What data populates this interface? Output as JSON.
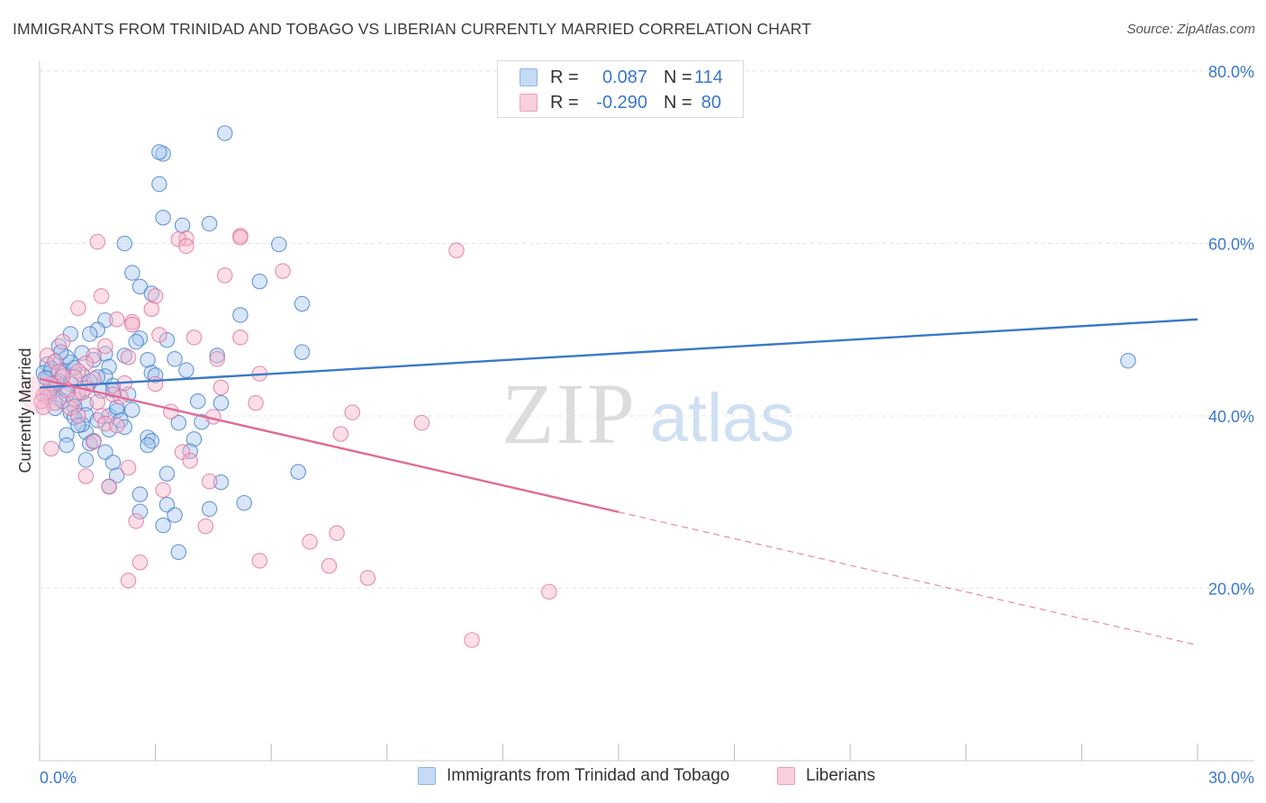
{
  "header": {
    "title": "IMMIGRANTS FROM TRINIDAD AND TOBAGO VS LIBERIAN CURRENTLY MARRIED CORRELATION CHART",
    "source": "Source: ZipAtlas.com"
  },
  "watermark": {
    "zip": "ZIP",
    "atlas": "atlas"
  },
  "legend": {
    "rows": [
      {
        "r_label": "R =",
        "r_value": "0.087",
        "n_label": "N =",
        "n_value": "114",
        "color": "#8fb6e8",
        "fill": "#c5daf4"
      },
      {
        "r_label": "R =",
        "r_value": "-0.290",
        "n_label": "N =",
        "n_value": "80",
        "color": "#eda1bd",
        "fill": "#f8cfdd"
      }
    ]
  },
  "bottom_legend": {
    "series1": "Immigrants from Trinidad and Tobago",
    "series2": "Liberians"
  },
  "chart_data": {
    "type": "scatter",
    "title": "IMMIGRANTS FROM TRINIDAD AND TOBAGO VS LIBERIAN CURRENTLY MARRIED CORRELATION CHART",
    "ylabel": "Currently Married",
    "xlabel": "",
    "xlim": [
      0,
      30
    ],
    "ylim": [
      0,
      80
    ],
    "x_tick_labels": [
      "0.0%",
      "30.0%"
    ],
    "y_tick_labels": [
      "20.0%",
      "40.0%",
      "60.0%",
      "80.0%"
    ],
    "y_ticks": [
      20,
      40,
      60,
      80
    ],
    "grid": true,
    "series": [
      {
        "name": "Immigrants from Trinidad and Tobago",
        "color": "#3a78c9",
        "marker_fill": "#a9c8ee",
        "trend": {
          "x": [
            0,
            30
          ],
          "y": [
            43.3,
            51.2
          ],
          "dashed_from": null
        },
        "points": [
          [
            4.8,
            72.8
          ],
          [
            3.2,
            70.4
          ],
          [
            3.1,
            70.6
          ],
          [
            3.1,
            66.9
          ],
          [
            3.2,
            63.0
          ],
          [
            3.7,
            62.1
          ],
          [
            4.4,
            62.3
          ],
          [
            2.2,
            60.0
          ],
          [
            6.2,
            59.9
          ],
          [
            2.4,
            56.6
          ],
          [
            5.7,
            55.6
          ],
          [
            2.6,
            55.0
          ],
          [
            2.9,
            54.2
          ],
          [
            6.8,
            53.0
          ],
          [
            5.2,
            51.7
          ],
          [
            1.7,
            51.1
          ],
          [
            1.5,
            50.0
          ],
          [
            1.3,
            49.5
          ],
          [
            0.8,
            49.5
          ],
          [
            2.6,
            49.0
          ],
          [
            3.3,
            48.8
          ],
          [
            2.5,
            48.6
          ],
          [
            0.5,
            48.1
          ],
          [
            6.8,
            47.4
          ],
          [
            1.1,
            47.3
          ],
          [
            1.7,
            47.2
          ],
          [
            4.6,
            47.0
          ],
          [
            3.5,
            46.6
          ],
          [
            2.8,
            46.5
          ],
          [
            28.2,
            46.4
          ],
          [
            0.4,
            46.3
          ],
          [
            0.8,
            46.2
          ],
          [
            0.2,
            46.0
          ],
          [
            1.8,
            45.7
          ],
          [
            0.6,
            45.3
          ],
          [
            3.8,
            45.3
          ],
          [
            0.1,
            45.0
          ],
          [
            0.3,
            45.1
          ],
          [
            0.6,
            44.9
          ],
          [
            1.1,
            44.8
          ],
          [
            0.2,
            44.3
          ],
          [
            1.7,
            44.6
          ],
          [
            1.5,
            44.5
          ],
          [
            0.5,
            44.0
          ],
          [
            0.8,
            43.7
          ],
          [
            0.4,
            43.4
          ],
          [
            0.3,
            43.1
          ],
          [
            1.9,
            43.0
          ],
          [
            1.0,
            42.6
          ],
          [
            0.7,
            42.5
          ],
          [
            0.2,
            42.2
          ],
          [
            0.5,
            42.0
          ],
          [
            4.1,
            41.7
          ],
          [
            4.7,
            41.5
          ],
          [
            1.2,
            41.4
          ],
          [
            0.9,
            41.1
          ],
          [
            0.4,
            40.9
          ],
          [
            2.4,
            40.7
          ],
          [
            2.0,
            40.6
          ],
          [
            0.8,
            40.4
          ],
          [
            1.2,
            40.1
          ],
          [
            1.8,
            40.0
          ],
          [
            0.9,
            39.8
          ],
          [
            1.5,
            39.5
          ],
          [
            2.1,
            39.5
          ],
          [
            3.6,
            39.2
          ],
          [
            4.2,
            39.3
          ],
          [
            2.2,
            38.7
          ],
          [
            1.8,
            38.4
          ],
          [
            1.2,
            38.1
          ],
          [
            0.7,
            37.8
          ],
          [
            2.8,
            37.5
          ],
          [
            4.0,
            37.3
          ],
          [
            2.9,
            37.1
          ],
          [
            1.3,
            36.8
          ],
          [
            0.7,
            36.6
          ],
          [
            2.8,
            36.6
          ],
          [
            3.9,
            35.9
          ],
          [
            1.7,
            35.8
          ],
          [
            1.2,
            34.9
          ],
          [
            1.9,
            34.6
          ],
          [
            6.7,
            33.5
          ],
          [
            2.0,
            33.1
          ],
          [
            3.3,
            33.3
          ],
          [
            4.7,
            32.3
          ],
          [
            1.8,
            31.8
          ],
          [
            2.6,
            30.9
          ],
          [
            3.3,
            29.7
          ],
          [
            5.3,
            29.9
          ],
          [
            2.6,
            28.9
          ],
          [
            4.4,
            29.2
          ],
          [
            3.5,
            28.5
          ],
          [
            3.2,
            27.3
          ],
          [
            3.6,
            24.2
          ],
          [
            1.9,
            43.5
          ],
          [
            2.2,
            47.0
          ],
          [
            1.4,
            46.5
          ],
          [
            0.9,
            45.6
          ],
          [
            2.9,
            45.0
          ],
          [
            1.6,
            42.9
          ],
          [
            0.6,
            41.7
          ],
          [
            1.1,
            39.0
          ],
          [
            0.3,
            45.5
          ],
          [
            0.15,
            44.4
          ],
          [
            0.45,
            43.8
          ],
          [
            0.25,
            42.7
          ],
          [
            0.7,
            46.8
          ],
          [
            1.3,
            44.0
          ],
          [
            2.0,
            41.0
          ],
          [
            1.0,
            38.9
          ],
          [
            3.0,
            44.7
          ],
          [
            0.55,
            47.4
          ],
          [
            2.3,
            42.5
          ],
          [
            1.4,
            37.1
          ]
        ]
      },
      {
        "name": "Liberians",
        "color": "#e06a97",
        "marker_fill": "#f5b8cc",
        "trend": {
          "x": [
            0,
            30
          ],
          "y": [
            44.3,
            13.4
          ],
          "dashed_from": 15.0
        },
        "points": [
          [
            1.5,
            60.2
          ],
          [
            3.8,
            60.6
          ],
          [
            3.6,
            60.5
          ],
          [
            5.2,
            60.9
          ],
          [
            5.2,
            60.7
          ],
          [
            3.8,
            59.7
          ],
          [
            10.8,
            59.2
          ],
          [
            6.3,
            56.8
          ],
          [
            4.8,
            56.3
          ],
          [
            1.6,
            53.9
          ],
          [
            3.0,
            53.9
          ],
          [
            1.0,
            52.5
          ],
          [
            2.9,
            52.4
          ],
          [
            2.4,
            50.9
          ],
          [
            2.4,
            50.6
          ],
          [
            2.0,
            51.2
          ],
          [
            3.1,
            49.4
          ],
          [
            4.0,
            49.1
          ],
          [
            5.2,
            49.1
          ],
          [
            0.6,
            48.6
          ],
          [
            1.7,
            48.1
          ],
          [
            0.2,
            47.0
          ],
          [
            1.4,
            47.0
          ],
          [
            2.3,
            46.8
          ],
          [
            4.6,
            46.6
          ],
          [
            0.4,
            46.3
          ],
          [
            1.2,
            46.1
          ],
          [
            1.0,
            45.2
          ],
          [
            0.5,
            45.1
          ],
          [
            5.7,
            44.9
          ],
          [
            0.9,
            44.5
          ],
          [
            1.4,
            44.3
          ],
          [
            3.0,
            43.7
          ],
          [
            0.3,
            43.7
          ],
          [
            1.2,
            43.2
          ],
          [
            0.7,
            43.0
          ],
          [
            4.7,
            43.3
          ],
          [
            0.2,
            42.8
          ],
          [
            0.1,
            42.4
          ],
          [
            2.1,
            42.2
          ],
          [
            1.9,
            42.5
          ],
          [
            0.9,
            41.9
          ],
          [
            1.5,
            41.6
          ],
          [
            5.6,
            41.5
          ],
          [
            0.4,
            41.5
          ],
          [
            0.1,
            41.0
          ],
          [
            0.8,
            40.9
          ],
          [
            3.4,
            40.5
          ],
          [
            8.1,
            40.4
          ],
          [
            1.6,
            40.0
          ],
          [
            1.0,
            40.0
          ],
          [
            4.5,
            39.9
          ],
          [
            9.9,
            39.2
          ],
          [
            1.7,
            39.1
          ],
          [
            2.0,
            38.9
          ],
          [
            7.8,
            37.9
          ],
          [
            1.4,
            37.0
          ],
          [
            3.7,
            35.8
          ],
          [
            0.3,
            36.2
          ],
          [
            3.9,
            34.8
          ],
          [
            2.3,
            34.0
          ],
          [
            1.2,
            33.0
          ],
          [
            4.4,
            32.4
          ],
          [
            3.2,
            31.4
          ],
          [
            1.8,
            31.8
          ],
          [
            2.5,
            27.8
          ],
          [
            4.3,
            27.2
          ],
          [
            7.7,
            26.4
          ],
          [
            7.0,
            25.4
          ],
          [
            5.7,
            23.2
          ],
          [
            2.6,
            23.0
          ],
          [
            7.5,
            22.6
          ],
          [
            8.5,
            21.2
          ],
          [
            2.3,
            20.9
          ],
          [
            13.2,
            19.6
          ],
          [
            11.2,
            14.0
          ],
          [
            0.05,
            41.7
          ],
          [
            0.6,
            44.6
          ],
          [
            1.1,
            42.7
          ],
          [
            2.2,
            43.8
          ]
        ]
      }
    ]
  }
}
